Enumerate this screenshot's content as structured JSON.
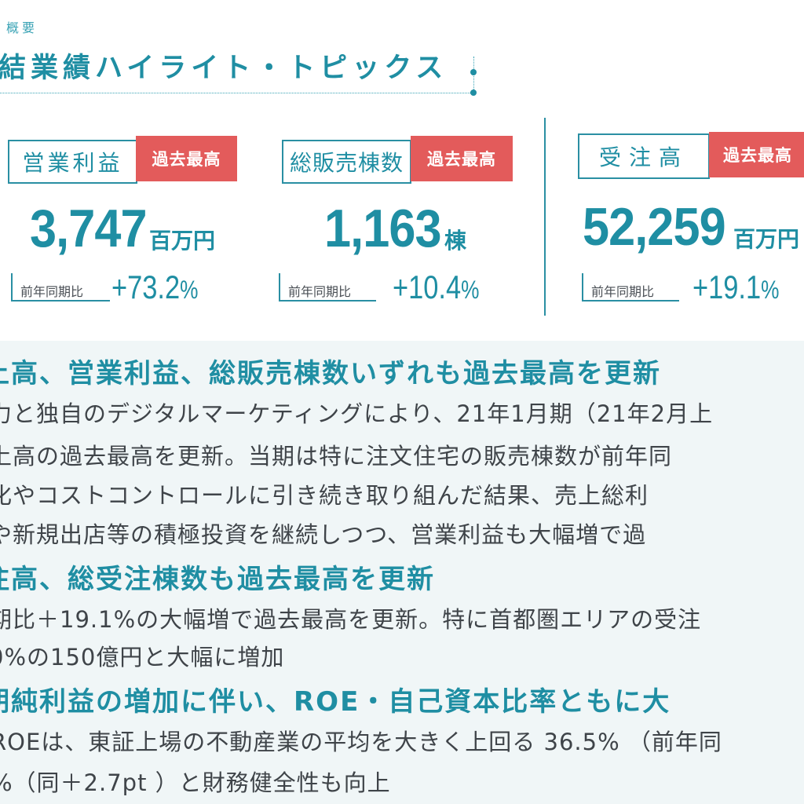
{
  "header": {
    "section_label": "概要",
    "title": "結業績ハイライト・トピックス"
  },
  "kpis": [
    {
      "label": "営業利益",
      "badge": "過去最高",
      "value": "3,747",
      "unit": "百万円",
      "yoy_label": "前年同期比",
      "yoy_value": "+73.2",
      "yoy_unit": "%"
    },
    {
      "label": "総販売棟数",
      "badge": "過去最高",
      "value": "1,163",
      "unit": "棟",
      "yoy_label": "前年同期比",
      "yoy_value": "+10.4",
      "yoy_unit": "%"
    },
    {
      "label": "受注高",
      "badge": "過去最高",
      "value": "52,259",
      "unit": "百万円",
      "yoy_label": "前年同期比",
      "yoy_value": "+19.1",
      "yoy_unit": "%"
    }
  ],
  "topics": [
    {
      "headline": "上高、営業利益、総販売棟数いずれも過去最高を更新",
      "lines": [
        "力と独自のデジタルマーケティングにより、21年1月期（21年2月上",
        "上高の過去最高を更新。当期は特に注文住宅の販売棟数が前年同",
        "化やコストコントロールに引き続き取り組んだ結果、売上総利",
        "や新規出店等の積極投資を継続しつつ、営業利益も大幅増で過"
      ]
    },
    {
      "headline": "注高、総受注棟数も過去最高を更新",
      "lines": [
        "期比＋19.1%の大幅増で過去最高を更新。特に首都圏エリアの受注",
        "0%の150億円と大幅に増加"
      ]
    },
    {
      "headline": "期純利益の増加に伴い、ROE・自己資本比率ともに大",
      "lines": [
        "ROEは、東証上場の不動産業の平均を大きく上回る 36.5% （前年同",
        "%（同＋2.7pt ）と財務健全性も向上"
      ]
    }
  ]
}
